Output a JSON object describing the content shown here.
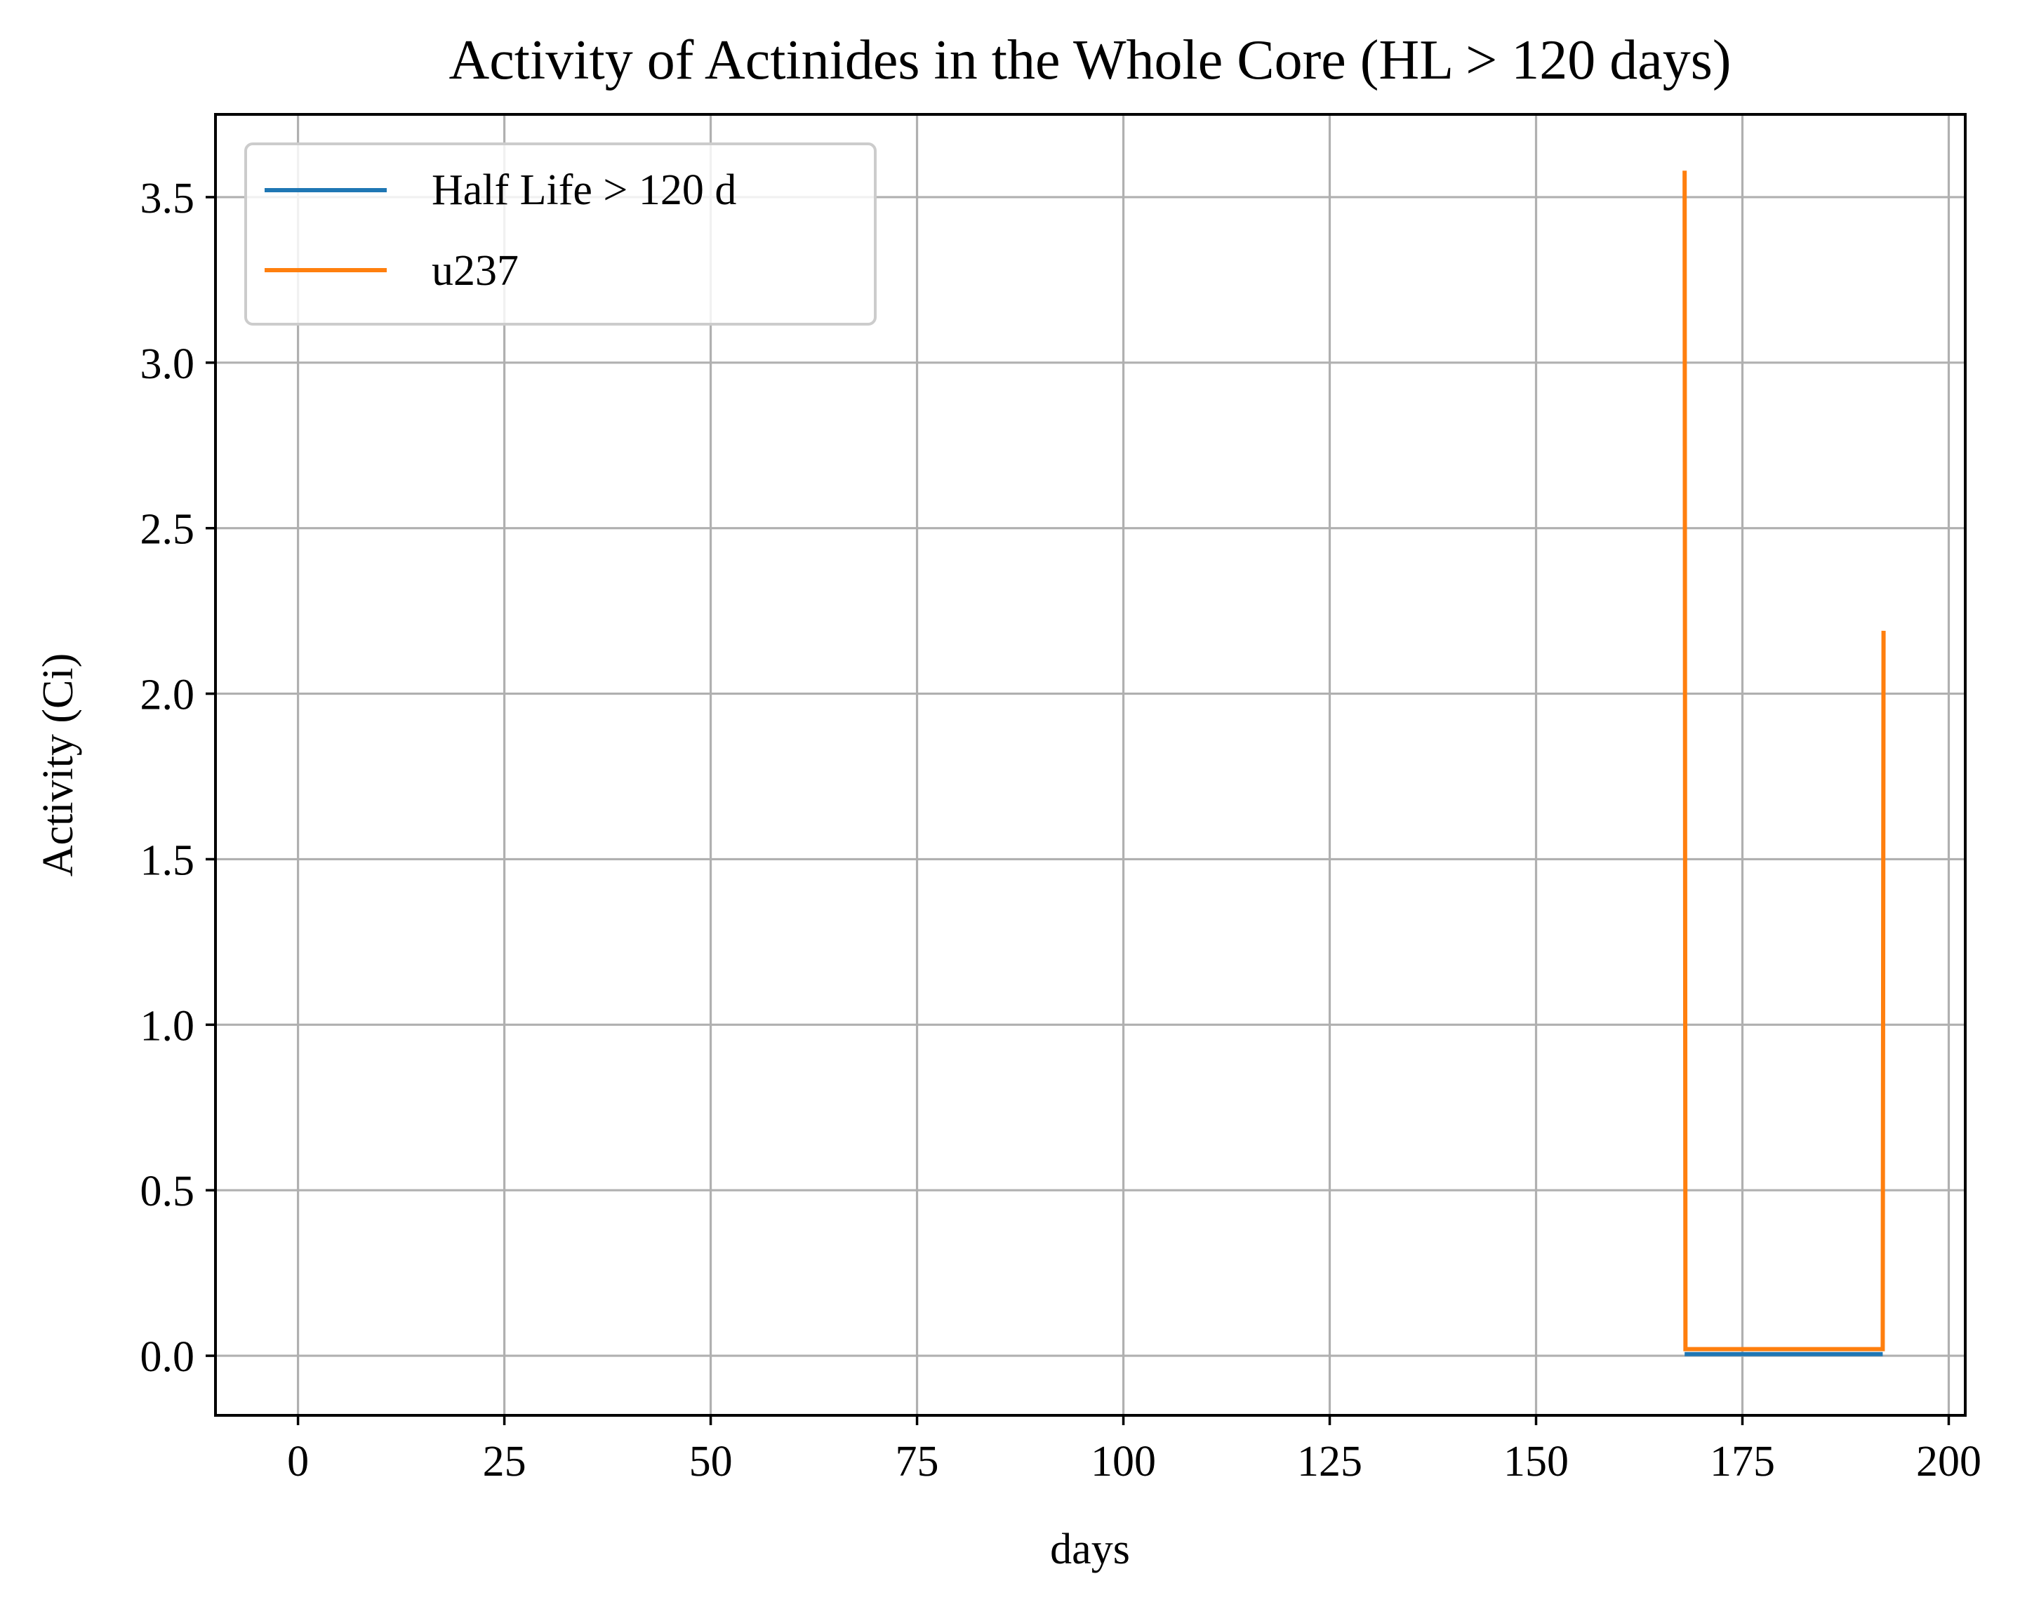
{
  "chart_data": {
    "type": "line",
    "title": "Activity of Actinides in the Whole Core (HL > 120 days)",
    "xlabel": "days",
    "ylabel": "Activity (Ci)",
    "xlim": [
      -10,
      202
    ],
    "ylim": [
      -0.18,
      3.75
    ],
    "xticks": [
      0,
      25,
      50,
      75,
      100,
      125,
      150,
      175,
      200
    ],
    "yticks": [
      0.0,
      0.5,
      1.0,
      1.5,
      2.0,
      2.5,
      3.0,
      3.5
    ],
    "xtick_labels": [
      "0",
      "25",
      "50",
      "75",
      "100",
      "125",
      "150",
      "175",
      "200"
    ],
    "ytick_labels": [
      "0.0",
      "0.5",
      "1.0",
      "1.5",
      "2.0",
      "2.5",
      "3.0",
      "3.5"
    ],
    "grid": true,
    "legend_position": "upper left",
    "series": [
      {
        "name": "Half Life > 120 d",
        "color": "#1f77b4",
        "x": [
          168,
          192
        ],
        "y": [
          0.005,
          0.005
        ]
      },
      {
        "name": "u237",
        "color": "#ff7f0e",
        "x": [
          168,
          168.1,
          192,
          192.1
        ],
        "y": [
          3.58,
          0.02,
          0.02,
          2.19
        ]
      }
    ]
  }
}
